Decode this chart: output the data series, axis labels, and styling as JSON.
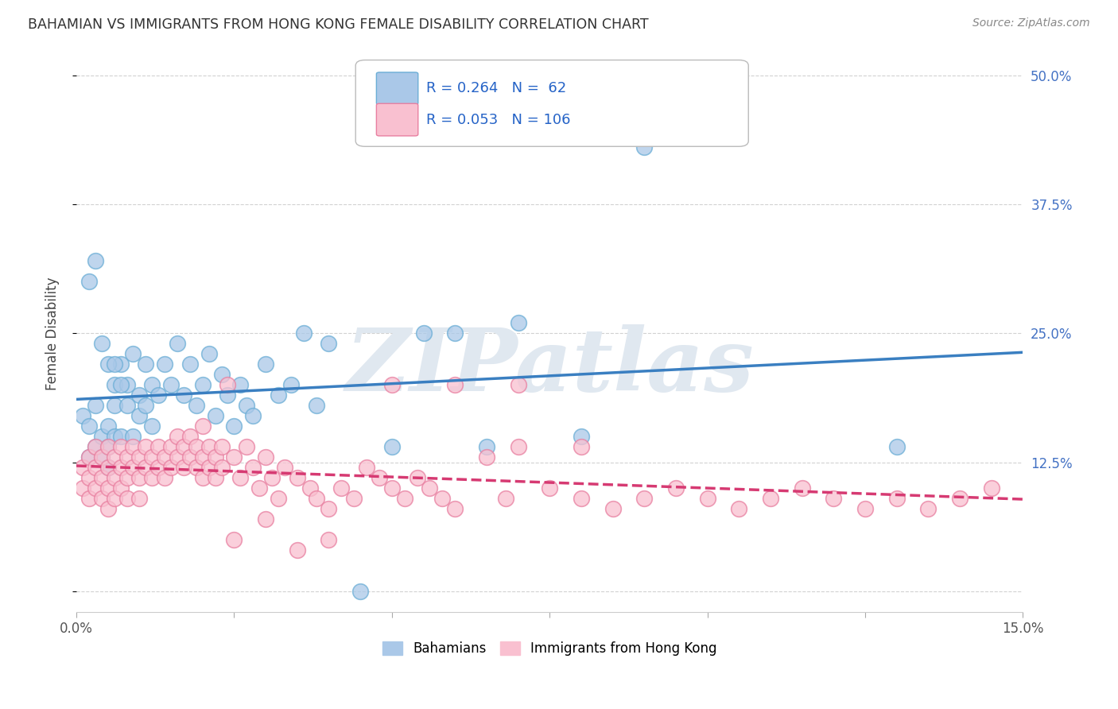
{
  "title": "BAHAMIAN VS IMMIGRANTS FROM HONG KONG FEMALE DISABILITY CORRELATION CHART",
  "source": "Source: ZipAtlas.com",
  "ylabel": "Female Disability",
  "xlabel": "",
  "xlim": [
    0.0,
    0.15
  ],
  "ylim": [
    -0.02,
    0.52
  ],
  "ytick_values": [
    0.0,
    0.125,
    0.25,
    0.375,
    0.5
  ],
  "xtick_values": [
    0.0,
    0.025,
    0.05,
    0.075,
    0.1,
    0.125,
    0.15
  ],
  "grid_color": "#cccccc",
  "background_color": "#ffffff",
  "watermark": "ZIPatlas",
  "series": [
    {
      "name": "Bahamians",
      "color": "#aac8e8",
      "edge_color": "#6baed6",
      "R": 0.264,
      "N": 62,
      "line_color": "#3a7fc1",
      "line_style": "solid",
      "x": [
        0.001,
        0.002,
        0.002,
        0.003,
        0.003,
        0.004,
        0.004,
        0.005,
        0.005,
        0.005,
        0.006,
        0.006,
        0.006,
        0.007,
        0.007,
        0.008,
        0.008,
        0.009,
        0.009,
        0.01,
        0.01,
        0.011,
        0.011,
        0.012,
        0.012,
        0.013,
        0.014,
        0.015,
        0.016,
        0.017,
        0.018,
        0.019,
        0.02,
        0.021,
        0.022,
        0.023,
        0.024,
        0.025,
        0.026,
        0.027,
        0.028,
        0.03,
        0.032,
        0.034,
        0.036,
        0.038,
        0.04,
        0.045,
        0.05,
        0.055,
        0.06,
        0.065,
        0.07,
        0.08,
        0.09,
        0.13,
        0.002,
        0.003,
        0.004,
        0.005,
        0.006,
        0.007
      ],
      "y": [
        0.17,
        0.16,
        0.13,
        0.18,
        0.14,
        0.15,
        0.13,
        0.16,
        0.14,
        0.12,
        0.15,
        0.18,
        0.2,
        0.22,
        0.15,
        0.2,
        0.18,
        0.23,
        0.15,
        0.19,
        0.17,
        0.22,
        0.18,
        0.2,
        0.16,
        0.19,
        0.22,
        0.2,
        0.24,
        0.19,
        0.22,
        0.18,
        0.2,
        0.23,
        0.17,
        0.21,
        0.19,
        0.16,
        0.2,
        0.18,
        0.17,
        0.22,
        0.19,
        0.2,
        0.25,
        0.18,
        0.24,
        0.0,
        0.14,
        0.25,
        0.25,
        0.14,
        0.26,
        0.15,
        0.43,
        0.14,
        0.3,
        0.32,
        0.24,
        0.22,
        0.22,
        0.2
      ]
    },
    {
      "name": "Immigrants from Hong Kong",
      "color": "#f9c0d0",
      "edge_color": "#e87fa0",
      "R": 0.053,
      "N": 106,
      "line_color": "#d63a72",
      "line_style": "dashed",
      "x": [
        0.001,
        0.001,
        0.002,
        0.002,
        0.002,
        0.003,
        0.003,
        0.003,
        0.004,
        0.004,
        0.004,
        0.005,
        0.005,
        0.005,
        0.005,
        0.006,
        0.006,
        0.006,
        0.007,
        0.007,
        0.007,
        0.008,
        0.008,
        0.008,
        0.009,
        0.009,
        0.01,
        0.01,
        0.01,
        0.011,
        0.011,
        0.012,
        0.012,
        0.013,
        0.013,
        0.014,
        0.014,
        0.015,
        0.015,
        0.016,
        0.016,
        0.017,
        0.017,
        0.018,
        0.018,
        0.019,
        0.019,
        0.02,
        0.02,
        0.021,
        0.021,
        0.022,
        0.022,
        0.023,
        0.023,
        0.024,
        0.025,
        0.026,
        0.027,
        0.028,
        0.029,
        0.03,
        0.031,
        0.032,
        0.033,
        0.035,
        0.037,
        0.038,
        0.04,
        0.042,
        0.044,
        0.046,
        0.048,
        0.05,
        0.052,
        0.054,
        0.056,
        0.058,
        0.06,
        0.065,
        0.068,
        0.07,
        0.075,
        0.08,
        0.085,
        0.09,
        0.095,
        0.1,
        0.105,
        0.11,
        0.115,
        0.12,
        0.125,
        0.13,
        0.135,
        0.14,
        0.145,
        0.05,
        0.06,
        0.07,
        0.08,
        0.02,
        0.025,
        0.03,
        0.035,
        0.04
      ],
      "y": [
        0.1,
        0.12,
        0.11,
        0.13,
        0.09,
        0.14,
        0.12,
        0.1,
        0.13,
        0.11,
        0.09,
        0.14,
        0.12,
        0.1,
        0.08,
        0.13,
        0.11,
        0.09,
        0.14,
        0.12,
        0.1,
        0.13,
        0.11,
        0.09,
        0.14,
        0.12,
        0.13,
        0.11,
        0.09,
        0.14,
        0.12,
        0.13,
        0.11,
        0.14,
        0.12,
        0.13,
        0.11,
        0.14,
        0.12,
        0.15,
        0.13,
        0.14,
        0.12,
        0.15,
        0.13,
        0.14,
        0.12,
        0.13,
        0.11,
        0.14,
        0.12,
        0.13,
        0.11,
        0.14,
        0.12,
        0.2,
        0.13,
        0.11,
        0.14,
        0.12,
        0.1,
        0.13,
        0.11,
        0.09,
        0.12,
        0.11,
        0.1,
        0.09,
        0.08,
        0.1,
        0.09,
        0.12,
        0.11,
        0.1,
        0.09,
        0.11,
        0.1,
        0.09,
        0.08,
        0.13,
        0.09,
        0.2,
        0.1,
        0.09,
        0.08,
        0.09,
        0.1,
        0.09,
        0.08,
        0.09,
        0.1,
        0.09,
        0.08,
        0.09,
        0.08,
        0.09,
        0.1,
        0.2,
        0.2,
        0.14,
        0.14,
        0.16,
        0.05,
        0.07,
        0.04,
        0.05
      ]
    }
  ],
  "legend_color_blue": "#aac8e8",
  "legend_color_pink": "#f9c0d0",
  "legend_R_blue": "0.264",
  "legend_N_blue": "62",
  "legend_R_pink": "0.053",
  "legend_N_pink": "106",
  "title_color": "#333333",
  "axis_label_color": "#444444",
  "right_tick_color": "#4472c4",
  "watermark_color": "#e0e8f0",
  "watermark_fontsize": 80
}
